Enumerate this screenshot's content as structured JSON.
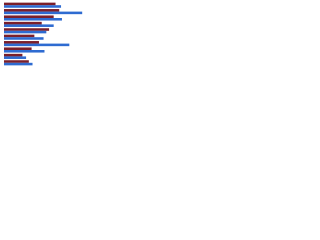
{
  "chart_data": {
    "type": "hbar",
    "categories": [
      null,
      null,
      null,
      null,
      null,
      null,
      null,
      null,
      null,
      null
    ],
    "series": [
      {
        "color": "#7a1f2b",
        "values": [
          56,
          60,
          54,
          41,
          49,
          33,
          38,
          30,
          20,
          27
        ]
      },
      {
        "color": "#2e6bd1",
        "values": [
          62,
          85,
          63,
          54,
          46,
          43,
          71,
          44,
          24,
          31
        ]
      }
    ],
    "xlim": [
      0,
      100
    ]
  }
}
